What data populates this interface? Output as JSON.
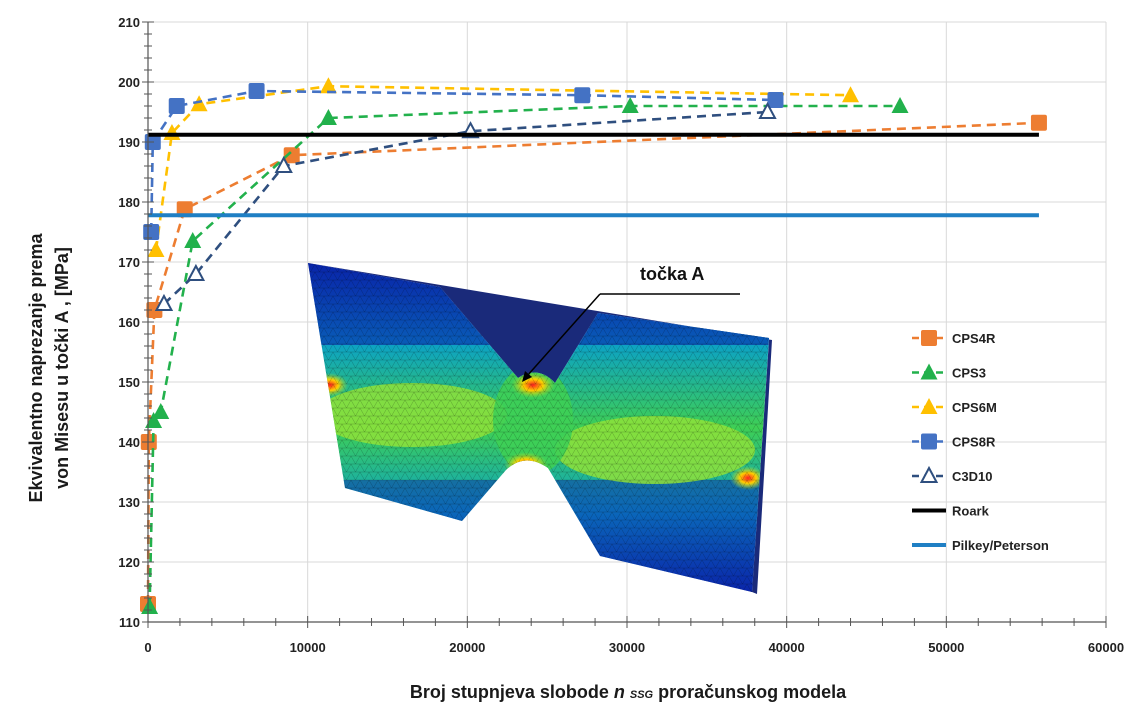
{
  "chart_data": {
    "type": "line",
    "title": "",
    "ylabel_line1": "Ekvivalentno naprezanje prema",
    "ylabel_line2": "von Misesu  u točki A , [MPa]",
    "xlabel_prefix": "Broj stupnjeva slobode ",
    "xlabel_italic": "n",
    "xlabel_sub": "SSG",
    "xlabel_suffix": " proračunskog modela",
    "xlim": [
      0,
      60000
    ],
    "ylim": [
      110,
      210
    ],
    "x_ticks": [
      "0",
      "10000",
      "20000",
      "30000",
      "40000",
      "50000",
      "60000"
    ],
    "y_ticks": [
      "110",
      "120",
      "130",
      "140",
      "150",
      "160",
      "170",
      "180",
      "190",
      "200",
      "210"
    ],
    "grid": true,
    "legend_position": "right",
    "series": [
      {
        "name": "CPS4R",
        "color": "#ED7D31",
        "marker": "square",
        "style": "dashed",
        "x": [
          0,
          50,
          400,
          2300,
          9000,
          55800
        ],
        "y": [
          113,
          140,
          162,
          178.8,
          187.8,
          193.2
        ]
      },
      {
        "name": "CPS3",
        "color": "#22B14C",
        "marker": "triangle",
        "style": "dashed",
        "x": [
          100,
          350,
          800,
          2800,
          11300,
          30200,
          47100
        ],
        "y": [
          112.5,
          143.5,
          145,
          173.5,
          194,
          196,
          196
        ]
      },
      {
        "name": "CPS6M",
        "color": "#FFC000",
        "marker": "triangle",
        "style": "dashed",
        "x": [
          500,
          1500,
          3200,
          11300,
          44000
        ],
        "y": [
          172,
          191.5,
          196.3,
          199.3,
          197.8
        ]
      },
      {
        "name": "CPS8R",
        "color": "#4472C4",
        "marker": "square",
        "style": "dashed",
        "x": [
          200,
          300,
          1800,
          6800,
          27200,
          39300
        ],
        "y": [
          175,
          190,
          196,
          198.5,
          197.8,
          197
        ]
      },
      {
        "name": "C3D10",
        "color": "#2F4F7F",
        "marker": "triangle-open",
        "style": "dashed",
        "x": [
          1000,
          3000,
          8500,
          20200,
          38800
        ],
        "y": [
          163,
          168,
          186,
          191.8,
          195
        ]
      },
      {
        "name": "Roark",
        "color": "#000000",
        "marker": "none",
        "style": "solid",
        "x": [
          0,
          55800
        ],
        "y": [
          191.2,
          191.2
        ]
      },
      {
        "name": "Pilkey/Peterson",
        "color": "#1F7FC4",
        "marker": "none",
        "style": "solid",
        "x": [
          0,
          55800
        ],
        "y": [
          177.8,
          177.8
        ]
      }
    ],
    "annotation": "točka A"
  }
}
